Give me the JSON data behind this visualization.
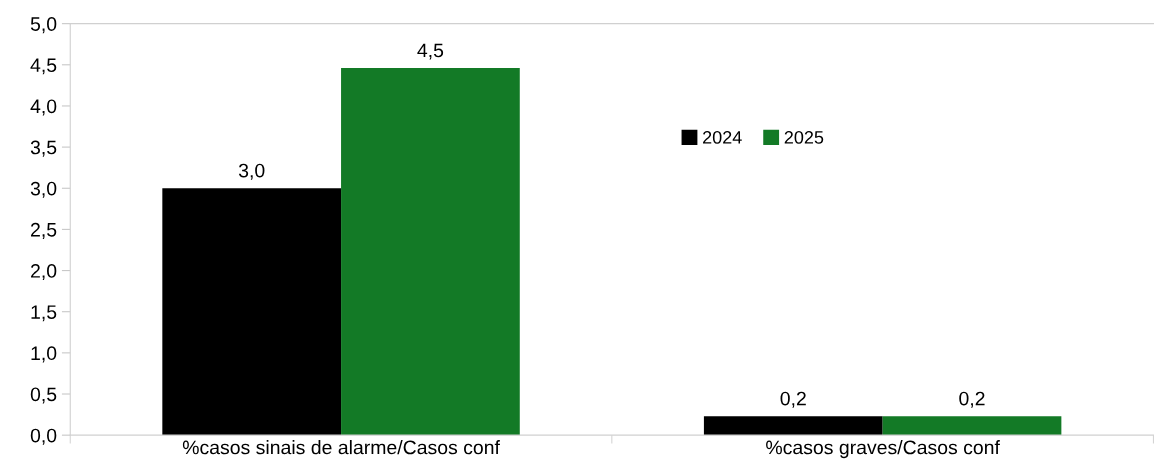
{
  "chart_data": {
    "type": "bar",
    "categories": [
      "%casos sinais de alarme/Casos conf",
      "%casos graves/Casos conf"
    ],
    "series": [
      {
        "name": "2024",
        "color": "#000000",
        "values": [
          3.0,
          0.23
        ],
        "value_labels": [
          "3,0",
          "0,2"
        ]
      },
      {
        "name": "2025",
        "color": "#137a26",
        "values": [
          4.46,
          0.23
        ],
        "value_labels": [
          "4,5",
          "0,2"
        ]
      }
    ],
    "ylim": [
      0,
      5
    ],
    "yticks": [
      {
        "value": 0,
        "label": "0,0"
      },
      {
        "value": 0.5,
        "label": "0,5"
      },
      {
        "value": 1,
        "label": "1,0"
      },
      {
        "value": 1.5,
        "label": "1,5"
      },
      {
        "value": 2,
        "label": "2,0"
      },
      {
        "value": 2.5,
        "label": "2,5"
      },
      {
        "value": 3,
        "label": "3,0"
      },
      {
        "value": 3.5,
        "label": "3,5"
      },
      {
        "value": 4,
        "label": "4,0"
      },
      {
        "value": 4.5,
        "label": "4,5"
      },
      {
        "value": 5,
        "label": "5,0"
      }
    ],
    "grid": false,
    "legend": "top right"
  }
}
